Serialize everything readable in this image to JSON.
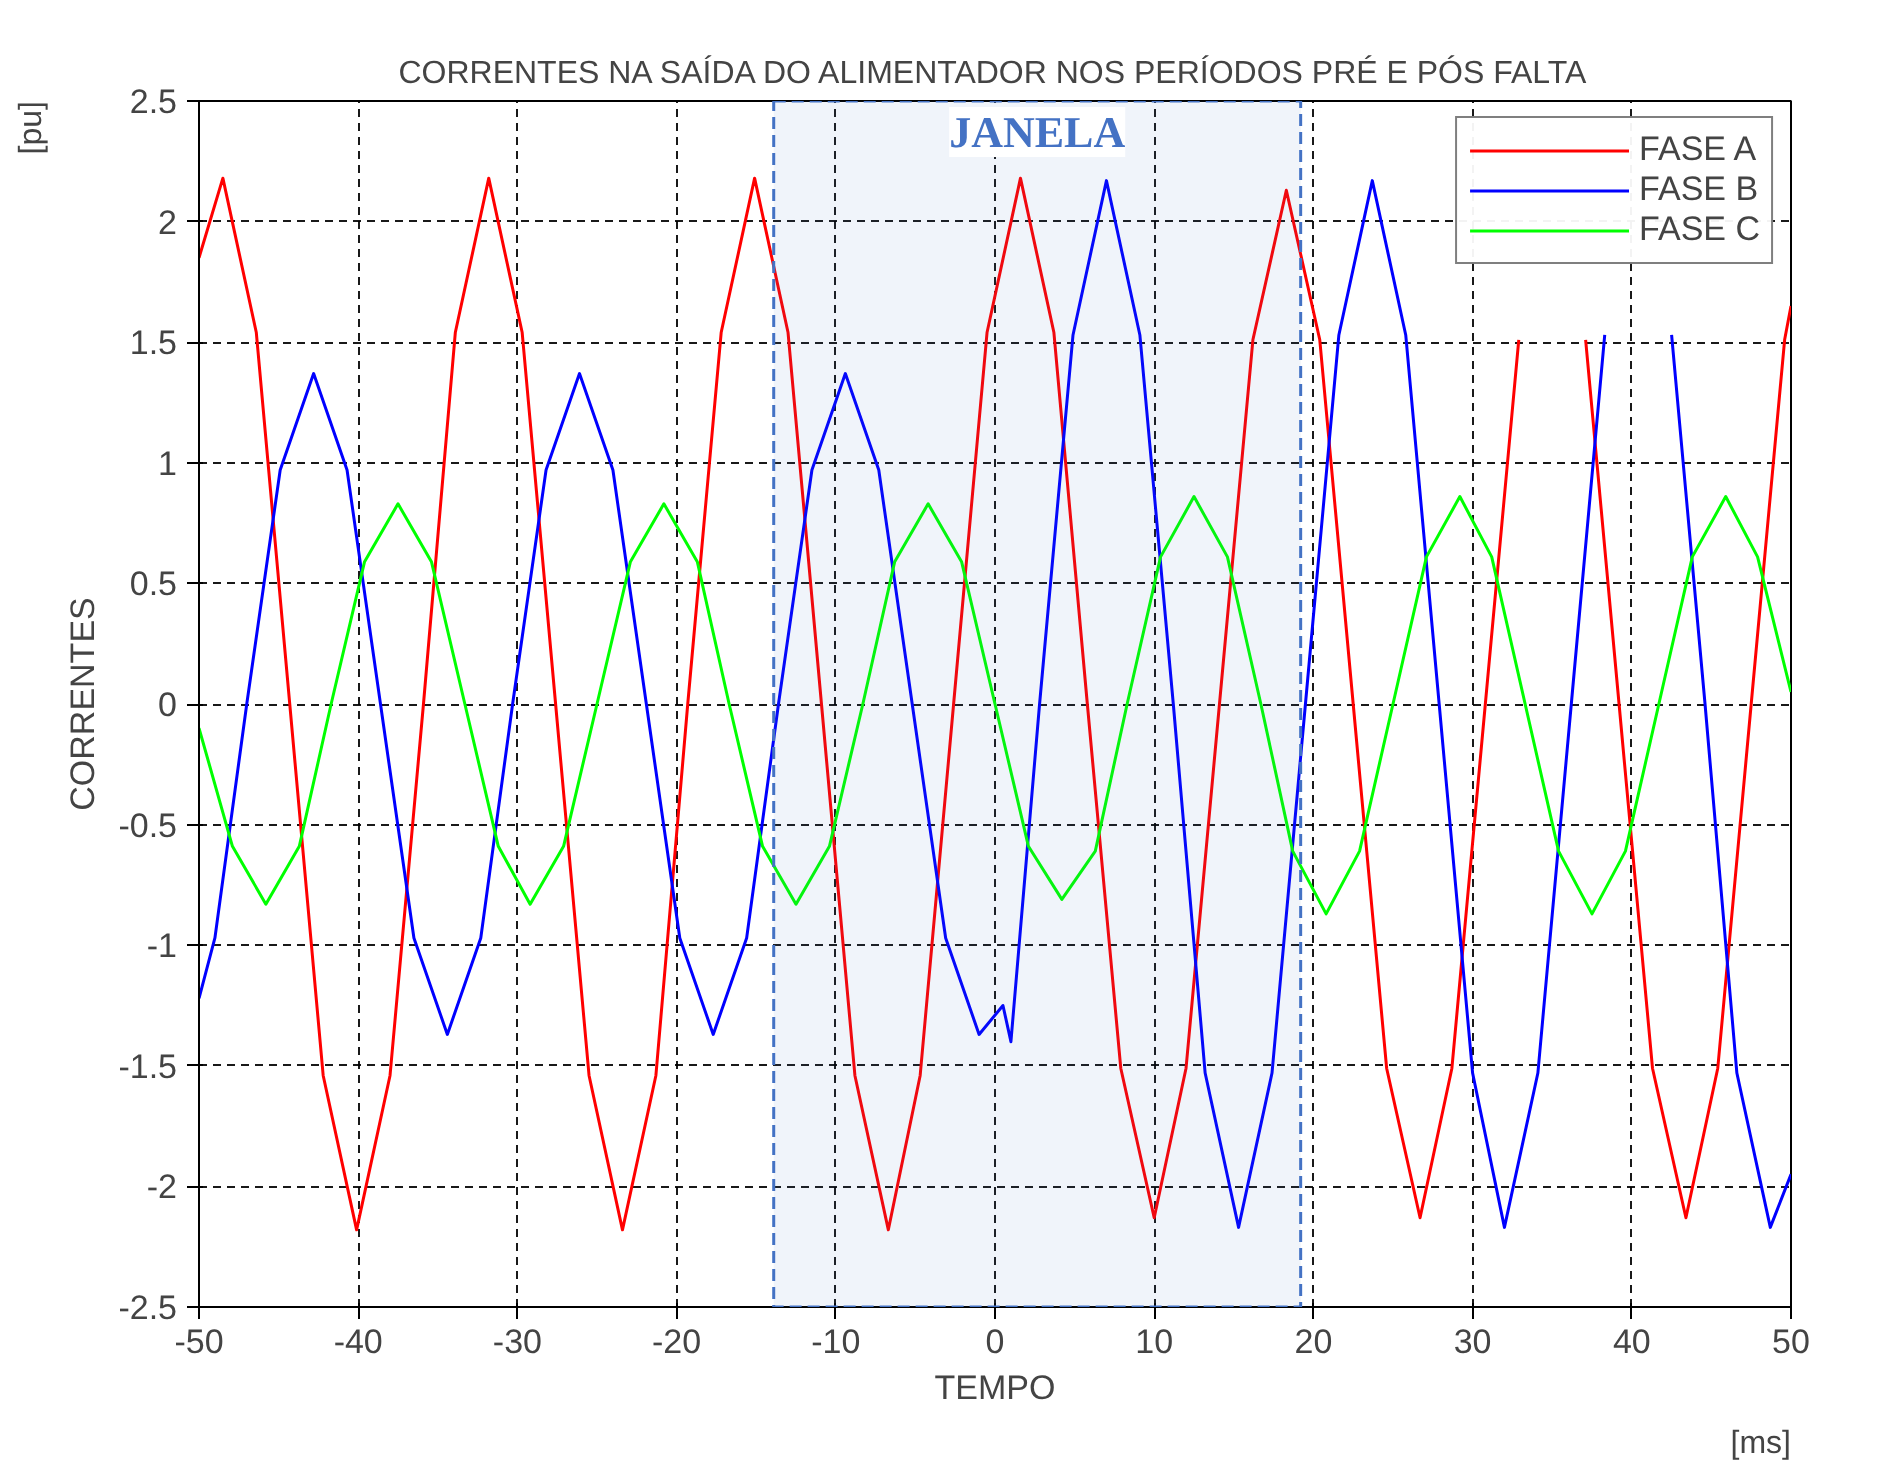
{
  "chart_data": {
    "type": "line",
    "title": "CORRENTES NA SAÍDA DO ALIMENTADOR NOS PERÍODOS PRÉ E PÓS FALTA",
    "xlabel": "TEMPO",
    "ylabel": "CORRENTES",
    "annotations": [
      "[pu]",
      "[ms]"
    ],
    "xlim": [
      -50,
      50
    ],
    "ylim": [
      -2.5,
      2.5
    ],
    "xticks": [
      -50,
      -40,
      -30,
      -20,
      -10,
      0,
      10,
      20,
      30,
      40,
      50
    ],
    "yticks": [
      -2.5,
      -2,
      -1.5,
      -1,
      -0.5,
      0,
      0.5,
      1,
      1.5,
      2,
      2.5
    ],
    "grid": true,
    "legend": "top right",
    "line_style": "solid",
    "bands": [
      {
        "axis": "x",
        "from": -13.9,
        "to": 19.2,
        "label": "JANELA",
        "color": "#4472c4"
      }
    ],
    "series": [
      {
        "name": "FASE A",
        "color": "#ff0000",
        "x": [
          -50,
          -48.5,
          -46.4,
          -44.3,
          -42.2,
          -40.1,
          -38.0,
          -35.9,
          -33.9,
          -31.8,
          -29.7,
          -27.6,
          -25.5,
          -23.4,
          -21.3,
          -19.3,
          -17.2,
          -15.1,
          -13.0,
          -10.9,
          -8.8,
          -6.7,
          -4.7,
          -2.6,
          -0.5,
          1.6,
          3.7,
          5.8,
          7.9,
          10.0,
          12.0,
          14.1,
          16.2,
          18.3,
          20.4,
          22.5,
          24.6,
          26.7,
          28.7,
          30.8,
          32.9,
          35.0,
          37.1,
          39.2,
          41.3,
          43.4,
          45.4,
          47.5,
          49.6,
          50
        ],
        "values": [
          1.85,
          2.18,
          1.54,
          0,
          -1.54,
          -2.18,
          -1.54,
          0,
          1.54,
          2.18,
          1.54,
          0,
          -1.54,
          -2.18,
          -1.54,
          0,
          1.54,
          2.18,
          1.54,
          0,
          -1.54,
          -2.18,
          -1.54,
          0,
          1.54,
          2.18,
          1.54,
          0,
          -1.51,
          -2.13,
          -1.51,
          0,
          1.51,
          2.13,
          1.51,
          0,
          -1.51,
          -2.13,
          -1.51,
          0,
          1.51,
          null,
          1.51,
          0,
          -1.51,
          -2.13,
          -1.51,
          0,
          1.51,
          1.65
        ]
      },
      {
        "name": "FASE B",
        "color": "#0000ff",
        "x": [
          -50,
          -49.0,
          -47.0,
          -44.9,
          -42.8,
          -40.7,
          -38.6,
          -36.5,
          -34.4,
          -32.3,
          -30.3,
          -28.2,
          -26.1,
          -24.0,
          -21.9,
          -19.8,
          -17.7,
          -15.6,
          -13.6,
          -11.5,
          -9.4,
          -7.3,
          -5.2,
          -3.1,
          -1.0,
          0.5,
          1.0,
          2.8,
          4.9,
          7.0,
          9.1,
          11.2,
          13.2,
          15.3,
          17.4,
          19.5,
          21.6,
          23.7,
          25.8,
          27.9,
          30.0,
          32.0,
          34.1,
          36.2,
          38.3,
          40.4,
          42.5,
          44.6,
          46.6,
          48.7,
          50
        ],
        "values": [
          -1.22,
          -0.97,
          0,
          0.97,
          1.37,
          0.97,
          0,
          -0.97,
          -1.37,
          -0.97,
          0,
          0.97,
          1.37,
          0.97,
          0,
          -0.97,
          -1.37,
          -0.97,
          0,
          0.97,
          1.37,
          0.97,
          0,
          -0.97,
          -1.37,
          -1.25,
          -1.4,
          0,
          1.53,
          2.17,
          1.53,
          0,
          -1.53,
          -2.17,
          -1.53,
          0,
          1.53,
          2.17,
          1.53,
          0,
          -1.53,
          -2.17,
          -1.53,
          0,
          1.53,
          null,
          1.53,
          0,
          -1.53,
          -2.17,
          -1.95
        ]
      },
      {
        "name": "FASE C",
        "color": "#00ff00",
        "x": [
          -50,
          -47.9,
          -45.8,
          -43.7,
          -41.7,
          -39.6,
          -37.5,
          -35.4,
          -33.3,
          -31.2,
          -29.2,
          -27.1,
          -25.0,
          -22.9,
          -20.8,
          -18.7,
          -16.7,
          -14.6,
          -12.5,
          -10.4,
          -8.3,
          -6.3,
          -4.2,
          -2.1,
          0,
          2.1,
          4.2,
          6.3,
          8.3,
          10.4,
          12.5,
          14.6,
          16.7,
          18.7,
          20.8,
          22.9,
          25.0,
          27.1,
          29.2,
          31.2,
          33.3,
          35.4,
          37.5,
          39.6,
          41.7,
          43.8,
          45.9,
          47.9,
          50
        ],
        "values": [
          -0.1,
          -0.59,
          -0.83,
          -0.59,
          0,
          0.59,
          0.83,
          0.59,
          0,
          -0.59,
          -0.83,
          -0.59,
          0,
          0.59,
          0.83,
          0.59,
          0,
          -0.59,
          -0.83,
          -0.59,
          0,
          0.59,
          0.83,
          0.59,
          0,
          -0.59,
          -0.81,
          -0.61,
          0,
          0.61,
          0.86,
          0.61,
          0,
          -0.61,
          -0.87,
          -0.61,
          0,
          0.61,
          0.86,
          0.61,
          0,
          -0.61,
          -0.87,
          -0.61,
          0,
          0.61,
          0.86,
          0.61,
          0.05
        ]
      }
    ]
  }
}
